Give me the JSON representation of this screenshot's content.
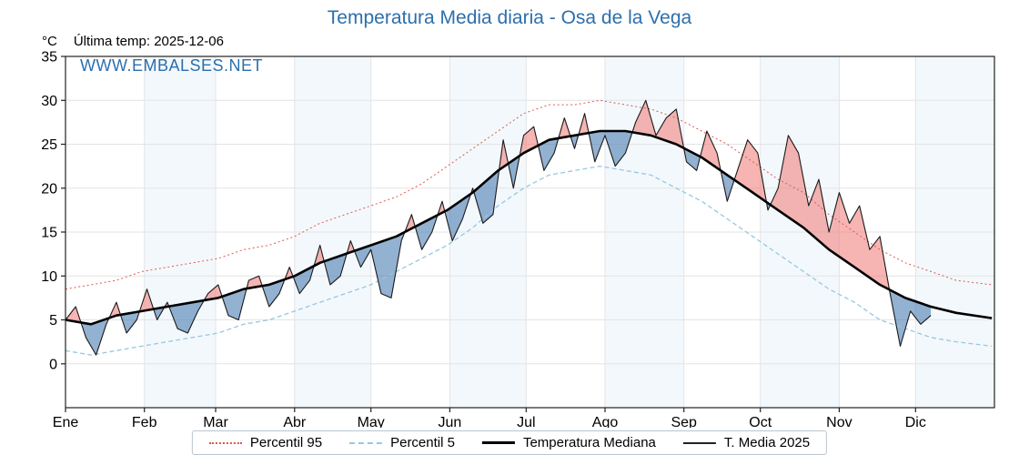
{
  "header": {
    "title": "Temperatura Media diaria - Osa de la Vega",
    "units_label": "°C",
    "last_temp_label": "Última temp: 2025-12-06",
    "watermark": "WWW.EMBALSES.NET"
  },
  "colors": {
    "title": "#2c6fad",
    "watermark": "#2c6fad",
    "p95": "#dd5a54",
    "p5": "#96c8e0",
    "median": "#000000",
    "t2025": "#1a1a1a",
    "fill_above": "rgba(238,120,115,0.55)",
    "fill_below": "rgba(75,125,178,0.6)",
    "band": "#f3f8fc",
    "grid": "#e4e4e4"
  },
  "chart_data": {
    "type": "line",
    "title": "Temperatura Media diaria - Osa de la Vega",
    "ylabel": "°C",
    "ylim": [
      -5,
      35
    ],
    "y_ticks": [
      0,
      5,
      10,
      15,
      20,
      25,
      30,
      35
    ],
    "x_tick_labels": [
      "Ene",
      "Feb",
      "Mar",
      "Abr",
      "May",
      "Jun",
      "Jul",
      "Ago",
      "Sep",
      "Oct",
      "Nov",
      "Dic"
    ],
    "month_start_days": [
      0,
      31,
      59,
      90,
      120,
      151,
      181,
      212,
      243,
      273,
      304,
      334
    ],
    "days_in_year": 365,
    "grid": true,
    "legend_position": "bottom",
    "legend": [
      "Percentil 95",
      "Percentil 5",
      "Temperatura Mediana",
      "T. Media 2025"
    ],
    "series": [
      {
        "name": "Percentil 95",
        "style": "dotted",
        "x": [
          0,
          10,
          20,
          30,
          40,
          50,
          60,
          70,
          80,
          90,
          100,
          110,
          120,
          130,
          140,
          150,
          160,
          170,
          180,
          190,
          200,
          210,
          220,
          230,
          240,
          250,
          260,
          270,
          280,
          290,
          300,
          310,
          320,
          330,
          340,
          350,
          364
        ],
        "y": [
          8.5,
          9,
          9.5,
          10.5,
          11,
          11.5,
          12,
          13,
          13.5,
          14.5,
          16,
          17,
          18,
          19,
          20.5,
          22.5,
          24.5,
          26.5,
          28.5,
          29.5,
          29.5,
          30,
          29.5,
          29,
          28,
          26.5,
          25,
          23,
          21,
          19.5,
          17,
          15,
          13,
          11.5,
          10.5,
          9.5,
          9
        ]
      },
      {
        "name": "Percentil 5",
        "style": "dashed",
        "x": [
          0,
          10,
          20,
          30,
          40,
          50,
          60,
          70,
          80,
          90,
          100,
          110,
          120,
          130,
          140,
          150,
          160,
          170,
          180,
          190,
          200,
          210,
          220,
          230,
          240,
          250,
          260,
          270,
          280,
          290,
          300,
          310,
          320,
          330,
          340,
          350,
          364
        ],
        "y": [
          1.5,
          1,
          1.5,
          2,
          2.5,
          3,
          3.5,
          4.5,
          5,
          6,
          7,
          8,
          9,
          10.5,
          12,
          13.5,
          15.5,
          18,
          20,
          21.5,
          22,
          22.5,
          22,
          21.5,
          20,
          18.5,
          16.5,
          14.5,
          12.5,
          10.5,
          8.5,
          7,
          5,
          4,
          3,
          2.5,
          2
        ]
      },
      {
        "name": "Temperatura Mediana",
        "style": "solid-thick",
        "x": [
          0,
          10,
          20,
          30,
          40,
          50,
          60,
          70,
          80,
          90,
          100,
          110,
          120,
          130,
          140,
          150,
          160,
          170,
          180,
          190,
          200,
          210,
          220,
          230,
          240,
          250,
          260,
          270,
          280,
          290,
          300,
          310,
          320,
          330,
          340,
          350,
          364
        ],
        "y": [
          5,
          4.5,
          5.5,
          6,
          6.5,
          7,
          7.5,
          8.5,
          9,
          10,
          11.5,
          12.5,
          13.5,
          14.5,
          16,
          17.5,
          19.5,
          22,
          24,
          25.5,
          26,
          26.5,
          26.5,
          26,
          25,
          23.5,
          21.5,
          19.5,
          17.5,
          15.5,
          13,
          11,
          9,
          7.5,
          6.5,
          5.8,
          5.2
        ]
      },
      {
        "name": "T. Media 2025",
        "style": "solid-thin",
        "x": [
          0,
          4,
          8,
          12,
          16,
          20,
          24,
          28,
          32,
          36,
          40,
          44,
          48,
          52,
          56,
          60,
          64,
          68,
          72,
          76,
          80,
          84,
          88,
          92,
          96,
          100,
          104,
          108,
          112,
          116,
          120,
          124,
          128,
          132,
          136,
          140,
          144,
          148,
          152,
          156,
          160,
          164,
          168,
          172,
          176,
          180,
          184,
          188,
          192,
          196,
          200,
          204,
          208,
          212,
          216,
          220,
          224,
          228,
          232,
          236,
          240,
          244,
          248,
          252,
          256,
          260,
          264,
          268,
          272,
          276,
          280,
          284,
          288,
          292,
          296,
          300,
          304,
          308,
          312,
          316,
          320,
          324,
          328,
          332,
          336,
          340
        ],
        "y": [
          5,
          6.5,
          3,
          1,
          4.5,
          7,
          3.5,
          5,
          8.5,
          5,
          7,
          4,
          3.5,
          6,
          8,
          9,
          5.5,
          5,
          9.5,
          10,
          6.5,
          8,
          11,
          8,
          9.5,
          13.5,
          9,
          10,
          14,
          11,
          13,
          8,
          7.5,
          14,
          17,
          13,
          15,
          18.5,
          14,
          16.5,
          20,
          16,
          17,
          25.5,
          20,
          26,
          27,
          22,
          24,
          28,
          24.5,
          28.5,
          23,
          26,
          22.5,
          24,
          27.5,
          30,
          26,
          28,
          29,
          23,
          22,
          26.5,
          24,
          18.5,
          22,
          25.5,
          24,
          17.5,
          20,
          26,
          24,
          18,
          21,
          15,
          19.5,
          16,
          18,
          13,
          14.5,
          8,
          2,
          6,
          4.5,
          5.5
        ]
      }
    ]
  }
}
